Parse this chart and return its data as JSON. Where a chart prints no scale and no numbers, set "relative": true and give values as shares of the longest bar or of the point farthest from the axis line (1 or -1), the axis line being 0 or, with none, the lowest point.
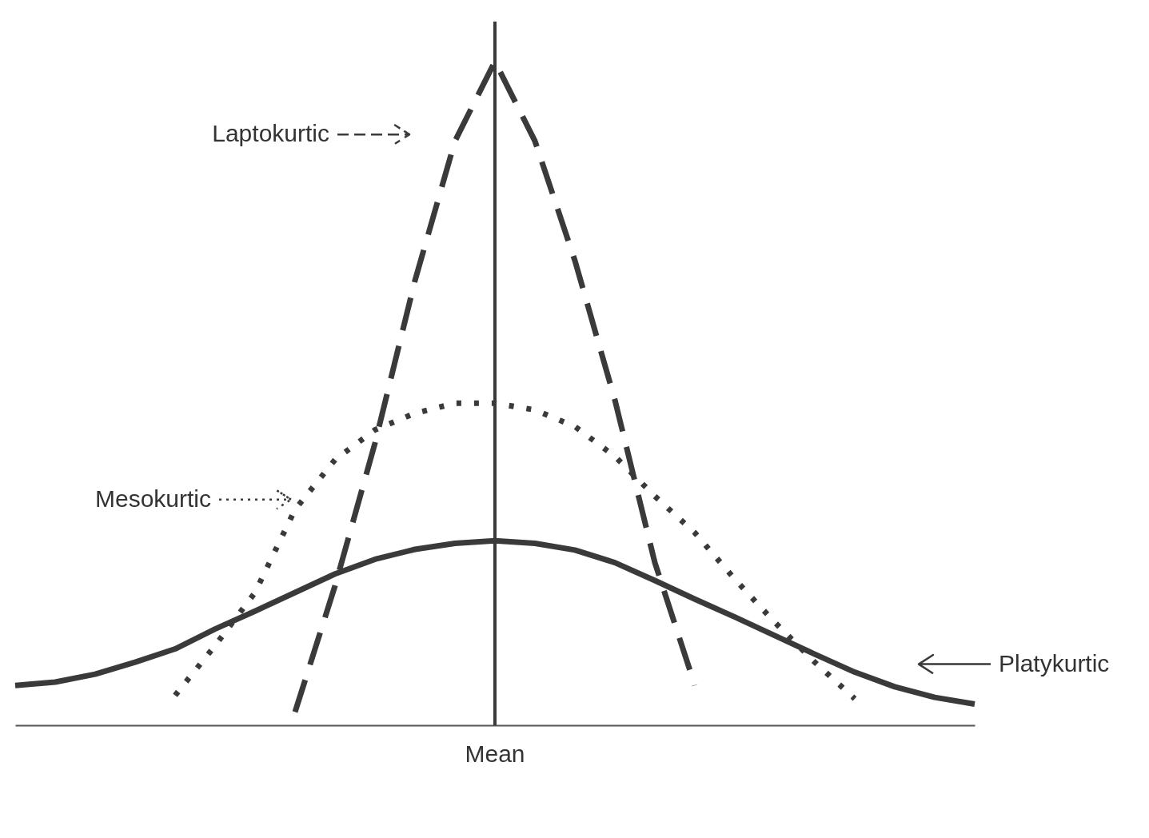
{
  "chart_data": {
    "type": "line",
    "relative": true,
    "legend": "left",
    "categories": [
      null,
      null,
      null,
      null,
      null,
      null,
      null,
      null,
      null,
      null,
      null,
      null,
      null,
      null,
      null,
      null,
      null,
      null,
      null,
      null,
      null,
      null,
      null,
      null,
      null
    ],
    "series": [
      {
        "name": "Laptokurtic",
        "color": "#3a3a3a",
        "line_style": "dashed",
        "values": [
          null,
          null,
          null,
          null,
          null,
          null,
          null,
          0.02,
          0.21,
          0.425,
          0.67,
          0.88,
          1,
          0.88,
          0.7,
          0.49,
          0.245,
          0.06,
          null,
          null,
          null,
          null,
          null,
          null,
          null
        ]
      },
      {
        "name": "Mesokurtic",
        "color": "#3a3a3a",
        "line_style": "dotted",
        "values": [
          null,
          null,
          null,
          null,
          0.045,
          0.12,
          0.2,
          0.325,
          0.4,
          0.445,
          0.47,
          0.485,
          0.485,
          0.475,
          0.45,
          0.405,
          0.345,
          0.29,
          0.22,
          0.155,
          0.095,
          0.04,
          null,
          null,
          null
        ]
      },
      {
        "name": "Platykurtic",
        "color": "#3a3a3a",
        "line_style": "solid",
        "values": [
          0.06,
          0.065,
          0.077,
          0.095,
          0.115,
          0.145,
          0.172,
          0.2,
          0.228,
          0.25,
          0.265,
          0.274,
          0.278,
          0.274,
          0.264,
          0.245,
          0.218,
          0.19,
          0.163,
          0.135,
          0.107,
          0.08,
          0.058,
          0.042,
          0.032
        ]
      }
    ],
    "ref_lines": [
      {
        "axis": "x",
        "label": "Mean"
      }
    ]
  }
}
